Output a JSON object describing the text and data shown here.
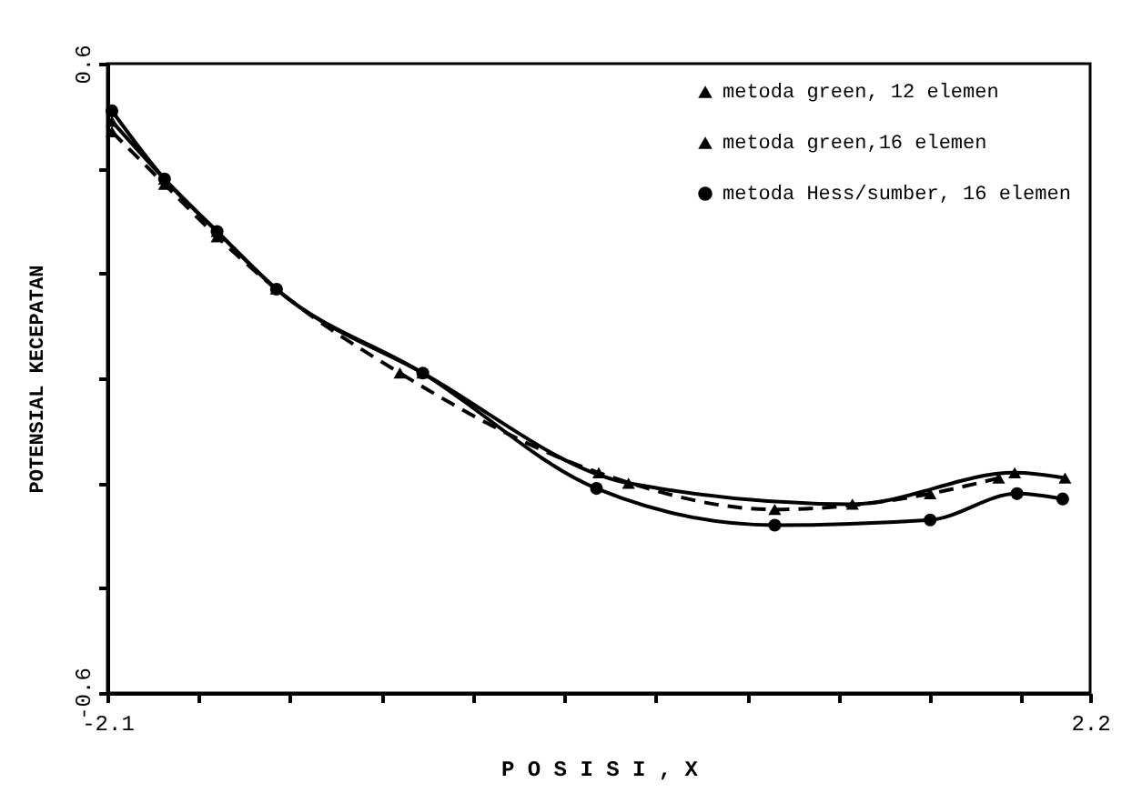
{
  "chart_data": {
    "type": "line",
    "xlabel": "P O S I S I ,   X",
    "ylabel": "POTENSIAL KECEPATAN",
    "xlim": [
      -2.1,
      2.2
    ],
    "ylim": [
      -0.6,
      0.6
    ],
    "xticks": [
      -2.1,
      {
        "value": -1.7,
        "label": null
      },
      {
        "value": -1.3,
        "label": null
      },
      {
        "value": -0.9,
        "label": null
      },
      {
        "value": -0.5,
        "label": null
      },
      {
        "value": -0.1,
        "label": null
      },
      {
        "value": 0.3,
        "label": null
      },
      {
        "value": 0.7,
        "label": null
      },
      {
        "value": 1.1,
        "label": null
      },
      {
        "value": 1.5,
        "label": null
      },
      {
        "value": 1.9,
        "label": null
      },
      2.2
    ],
    "yticks": [
      -0.6,
      {
        "value": -0.4,
        "label": null
      },
      {
        "value": -0.2,
        "label": null
      },
      {
        "value": 0,
        "label": null
      },
      {
        "value": 0.2,
        "label": null
      },
      {
        "value": 0.4,
        "label": null
      },
      0.6
    ],
    "grid": false,
    "legend": "top right",
    "series": [
      {
        "name": "metoda green, 12 elemen",
        "color": "#000000",
        "marker": "triangle",
        "line_style": "dashed",
        "x": [
          -2.08,
          -1.85,
          -1.62,
          -1.36,
          -0.82,
          0.05,
          0.82,
          1.5,
          1.8
        ],
        "values": [
          0.47,
          0.37,
          0.27,
          0.17,
          0.01,
          -0.18,
          -0.25,
          -0.22,
          -0.19
        ]
      },
      {
        "name": "metoda green,16 elemen",
        "color": "#000000",
        "marker": "triangle",
        "line_style": "solid",
        "x": [
          -2.08,
          -1.85,
          -1.62,
          -1.36,
          -0.72,
          0.18,
          1.16,
          1.87,
          2.09
        ],
        "values": [
          0.49,
          0.38,
          0.28,
          0.17,
          0.01,
          -0.2,
          -0.24,
          -0.18,
          -0.19
        ]
      },
      {
        "name": "metoda Hess/sumber, 16 elemen",
        "color": "#000000",
        "marker": "circle",
        "line_style": "solid",
        "x": [
          -2.08,
          -1.85,
          -1.62,
          -1.36,
          -0.72,
          0.04,
          0.82,
          1.5,
          1.88,
          2.08
        ],
        "values": [
          0.51,
          0.38,
          0.28,
          0.17,
          0.01,
          -0.21,
          -0.28,
          -0.27,
          -0.22,
          -0.23
        ]
      }
    ]
  }
}
